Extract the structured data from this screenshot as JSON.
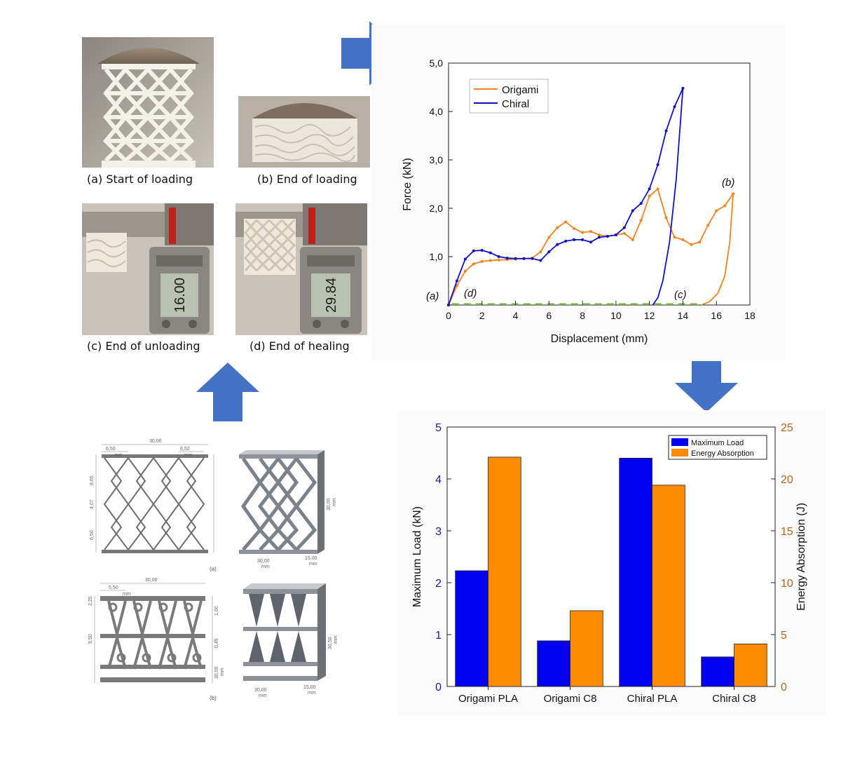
{
  "photos": {
    "captions": [
      "(a) Start of loading",
      "(b) End of loading",
      "(c) End of unloading",
      "(d) End of healing"
    ],
    "caliper_c": "16.00",
    "caliper_d": "29.84"
  },
  "drawings": {
    "label_a": "(a)",
    "label_b": "(b)",
    "dims_a": [
      "30,00",
      "6,50",
      "mm",
      "6,52",
      "mm",
      "8,65",
      "4,07",
      "6,50",
      "30,00",
      "mm",
      "30,00",
      "mm",
      "15,00",
      "mm"
    ],
    "dims_b": [
      "30,00",
      "5,50",
      "mm",
      "2,25",
      "1,00",
      "9,50",
      "0,45",
      "30,00",
      "mm",
      "30,00",
      "mm",
      "15,00",
      "mm",
      "30,50",
      "mm"
    ]
  },
  "chart_data": [
    {
      "type": "line",
      "xlabel": "Displacement (mm)",
      "ylabel": "Force (kN)",
      "xlim": [
        0,
        18
      ],
      "ylim": [
        0,
        5
      ],
      "xticks": [
        "0",
        "2",
        "4",
        "6",
        "8",
        "10",
        "12",
        "14",
        "16",
        "18"
      ],
      "yticks": [
        "1,0",
        "2,0",
        "3,0",
        "4,0",
        "5,0"
      ],
      "legend": "top-left",
      "annotations": [
        "(a)",
        "(b)",
        "(c)",
        "(d)"
      ],
      "colors": {
        "origami": "#f5821f",
        "chiral": "#1010c8",
        "healing": "#7cbd45"
      },
      "series": [
        {
          "name": "Origami",
          "x": [
            0,
            0.5,
            1,
            1.5,
            2,
            2.5,
            3,
            3.5,
            4,
            4.5,
            5,
            5.5,
            6,
            6.5,
            7,
            7.5,
            8,
            8.5,
            9,
            9.5,
            10,
            10.5,
            11,
            11.5,
            12,
            12.5,
            13,
            13.5,
            14,
            14.5,
            15,
            15.5,
            16,
            16.5,
            17
          ],
          "y": [
            0,
            0.4,
            0.7,
            0.85,
            0.9,
            0.92,
            0.93,
            0.94,
            0.95,
            0.96,
            0.97,
            1.1,
            1.4,
            1.6,
            1.72,
            1.58,
            1.5,
            1.52,
            1.45,
            1.42,
            1.45,
            1.48,
            1.35,
            1.75,
            2.25,
            2.4,
            1.8,
            1.4,
            1.35,
            1.25,
            1.3,
            1.65,
            1.95,
            2.05,
            2.3
          ]
        },
        {
          "name": "Chiral",
          "x": [
            0,
            0.5,
            1,
            1.5,
            2,
            2.5,
            3,
            3.5,
            4,
            4.5,
            5,
            5.5,
            6,
            6.5,
            7,
            7.5,
            8,
            8.5,
            9,
            9.5,
            10,
            10.5,
            11,
            11.5,
            12,
            12.5,
            13,
            13.5,
            14
          ],
          "y": [
            0,
            0.5,
            0.95,
            1.12,
            1.13,
            1.08,
            1.0,
            0.97,
            0.96,
            0.96,
            0.96,
            0.92,
            1.1,
            1.25,
            1.32,
            1.35,
            1.35,
            1.3,
            1.4,
            1.42,
            1.45,
            1.6,
            1.95,
            2.1,
            2.4,
            2.9,
            3.6,
            4.1,
            4.48
          ]
        }
      ]
    },
    {
      "type": "bar",
      "categories": [
        "Origami PLA",
        "Origami C8",
        "Chiral PLA",
        "Chiral C8"
      ],
      "ylabel": "Maximum Load  (kN)",
      "y2label": "Energy Absorption (J)",
      "ylim": [
        0,
        5
      ],
      "y2lim": [
        0,
        25
      ],
      "yticks": [
        "0",
        "1",
        "2",
        "3",
        "4",
        "5"
      ],
      "y2ticks": [
        "0",
        "5",
        "10",
        "15",
        "20",
        "25"
      ],
      "legend": "top-right",
      "colors": {
        "load": "#0000ee",
        "energy": "#ff8c00",
        "y2axis": "#b5651d"
      },
      "series": [
        {
          "name": "Maximum Load",
          "values": [
            2.23,
            0.88,
            4.4,
            0.57
          ]
        },
        {
          "name": "Energy Absorption",
          "values": [
            22.1,
            7.3,
            19.4,
            4.1
          ]
        }
      ]
    }
  ]
}
